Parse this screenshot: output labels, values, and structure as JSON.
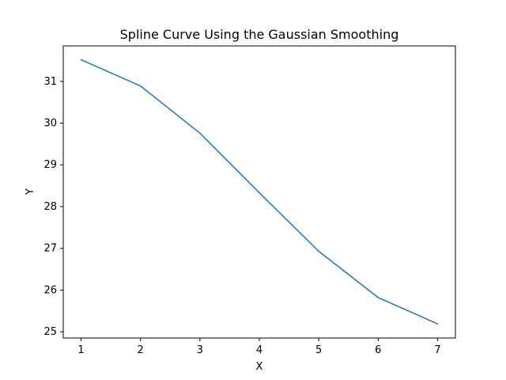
{
  "chart_data": {
    "type": "line",
    "title": "Spline Curve Using the Gaussian Smoothing",
    "xlabel": "X",
    "ylabel": "Y",
    "x": [
      1,
      2,
      3,
      4,
      5,
      6,
      7
    ],
    "series": [
      {
        "values": [
          31.52,
          30.89,
          29.76,
          28.33,
          26.93,
          25.82,
          25.19
        ],
        "color": "#1f77b4"
      }
    ],
    "xticks": [
      "1",
      "2",
      "3",
      "4",
      "5",
      "6",
      "7"
    ],
    "yticks": [
      "25",
      "26",
      "27",
      "28",
      "29",
      "30",
      "31"
    ],
    "xlim": [
      0.7,
      7.3
    ],
    "ylim": [
      24.85,
      31.85
    ],
    "grid": false
  }
}
